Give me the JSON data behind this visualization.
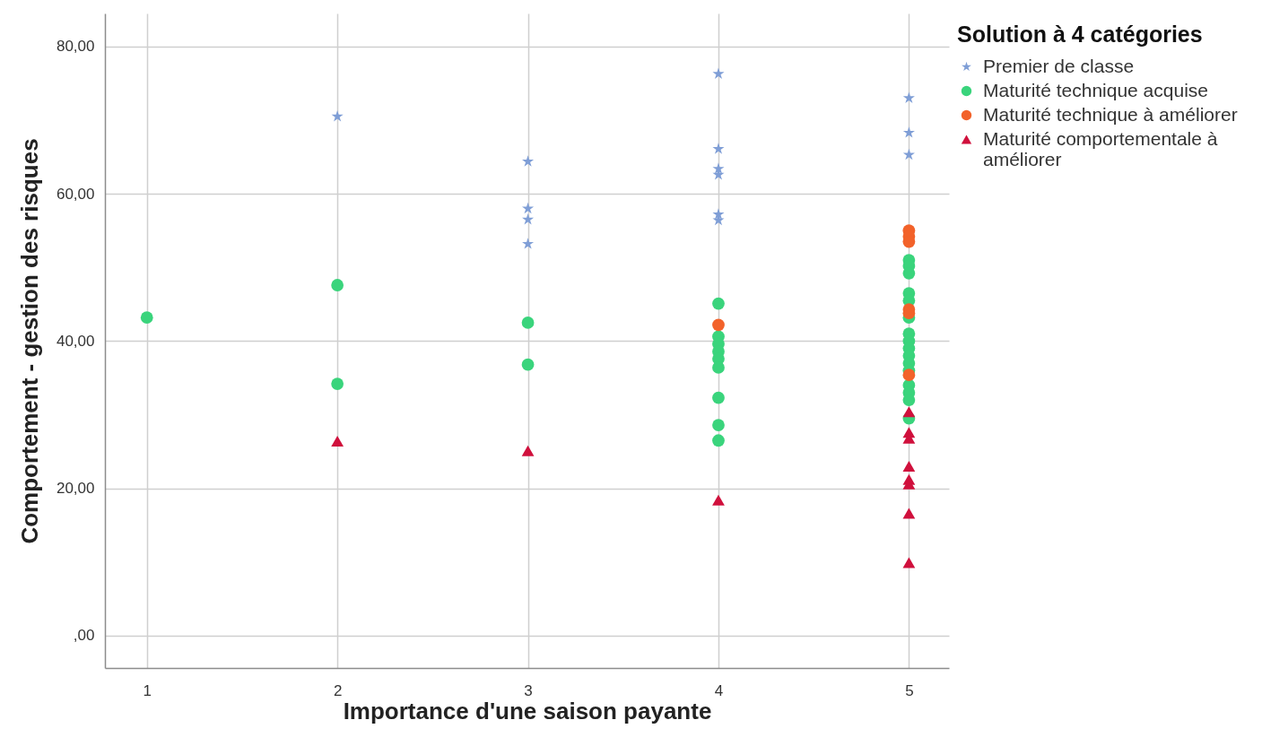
{
  "chart_data": {
    "type": "scatter",
    "xlabel": "Importance d'une saison payante",
    "ylabel": "Comportement - gestion des risques",
    "legend_title": "Solution à 4 catégories",
    "xlim": [
      0.78,
      5.21
    ],
    "xticks": [
      1,
      2,
      3,
      4,
      5
    ],
    "ylim": [
      -4.4,
      84.5
    ],
    "yticks": [
      {
        "value": 0,
        "label": ",00"
      },
      {
        "value": 20,
        "label": "20,00"
      },
      {
        "value": 40,
        "label": "40,00"
      },
      {
        "value": 60,
        "label": "60,00"
      },
      {
        "value": 80,
        "label": "80,00"
      }
    ],
    "grid": true,
    "legend": "top right",
    "series": [
      {
        "name": "Premier de classe",
        "color": "#7f9ed6",
        "marker": "star",
        "x": [
          2,
          3,
          3,
          3,
          3,
          4,
          4,
          4,
          4,
          4,
          4,
          5,
          5,
          5
        ],
        "values": [
          70.5,
          64.4,
          58.0,
          56.5,
          53.2,
          76.3,
          66.1,
          63.4,
          62.6,
          57.2,
          56.4,
          73.0,
          68.3,
          65.3
        ]
      },
      {
        "name": "Maturité technique acquise",
        "color": "#3ad47c",
        "marker": "circle",
        "x": [
          1,
          2,
          2,
          3,
          3,
          4,
          4,
          4,
          4,
          4,
          4,
          4,
          4,
          4,
          5,
          5,
          5,
          5,
          5,
          5,
          5,
          5,
          5,
          5,
          5,
          5,
          5,
          5,
          5,
          5
        ],
        "values": [
          43.2,
          47.6,
          34.2,
          42.5,
          36.8,
          45.1,
          40.6,
          39.6,
          38.6,
          37.6,
          36.4,
          32.3,
          28.6,
          26.5,
          51.0,
          50.2,
          49.2,
          46.5,
          45.5,
          43.2,
          41.0,
          40.0,
          39.0,
          38.0,
          37.0,
          36.0,
          34.0,
          33.0,
          32.0,
          29.5
        ]
      },
      {
        "name": "Maturité technique à améliorer",
        "color": "#f2622a",
        "marker": "circle",
        "x": [
          4,
          5,
          5,
          5,
          5,
          5,
          5
        ],
        "values": [
          42.2,
          55.0,
          54.2,
          53.5,
          44.3,
          43.8,
          35.4
        ]
      },
      {
        "name": "Maturité comportementale à améliorer",
        "color": "#d0103c",
        "marker": "triangle",
        "x": [
          2,
          3,
          4,
          5,
          5,
          5,
          5,
          5,
          5,
          5,
          5
        ],
        "values": [
          26.4,
          25.1,
          18.4,
          30.4,
          27.6,
          26.8,
          23.0,
          21.2,
          20.6,
          16.6,
          9.9
        ]
      }
    ]
  }
}
